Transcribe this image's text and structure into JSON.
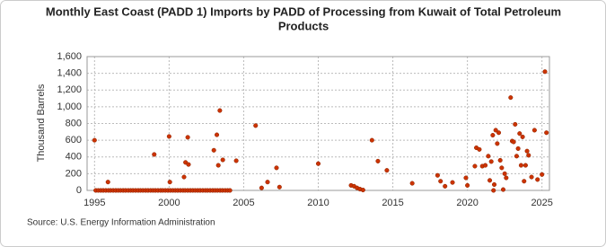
{
  "chart_data": {
    "type": "scatter",
    "title": [
      "Monthly East Coast (PADD 1) Imports by PADD of Processing from Kuwait of Total Petroleum",
      "Products"
    ],
    "y_label": "Thousand Barrels",
    "source": "Source: U.S. Energy Information Administration",
    "color": "#cc3300",
    "grid": true,
    "xlim": [
      1994.5,
      2025.5
    ],
    "xticks": [
      1995,
      2000,
      2005,
      2010,
      2015,
      2020,
      2025
    ],
    "ylim": [
      0,
      1600
    ],
    "yticks": [
      0,
      200,
      400,
      600,
      800,
      {
        "value": 1000,
        "label": "1,000"
      },
      {
        "value": 1200,
        "label": "1,200"
      },
      {
        "value": 1400,
        "label": "1,400"
      },
      {
        "value": 1600,
        "label": "1,600"
      }
    ],
    "x": [
      1995.08,
      1995.25,
      1995.42,
      1995.58,
      1995.75,
      1995.92,
      1996.08,
      1996.25,
      1996.42,
      1996.58,
      1996.75,
      1996.92,
      1997.08,
      1997.25,
      1997.42,
      1997.58,
      1997.75,
      1997.92,
      1998.08,
      1998.25,
      1998.42,
      1998.58,
      1998.75,
      1998.92,
      1999.08,
      1999.25,
      1999.42,
      1999.58,
      1999.75,
      1999.92,
      2000.08,
      2000.25,
      2000.42,
      2000.58,
      2000.75,
      2000.92,
      2001.08,
      2001.25,
      2001.42,
      2001.58,
      2001.75,
      2001.92,
      2002.08,
      2002.25,
      2002.42,
      2002.58,
      2002.75,
      2002.92,
      2003.08,
      2003.25,
      2003.42,
      2003.58,
      2003.75,
      2003.92,
      2004.08,
      1995.0,
      1995.9,
      1999.0,
      2000.0,
      2000.05,
      2001.0,
      2001.1,
      2001.25,
      2001.3,
      2003.0,
      2003.2,
      2003.3,
      2003.4,
      2003.6,
      2004.5,
      2005.8,
      2006.2,
      2006.6,
      2007.2,
      2007.4,
      2010.0,
      2012.2,
      2012.4,
      2012.6,
      2012.8,
      2013.0,
      2013.6,
      2014.0,
      2014.6,
      2016.3,
      2018.0,
      2018.2,
      2018.5,
      2019.0,
      2019.9,
      2020.0,
      2020.5,
      2020.6,
      2020.8,
      2021.0,
      2021.2,
      2021.4,
      2021.5,
      2021.6,
      2021.7,
      2021.75,
      2021.8,
      2021.9,
      2022.0,
      2022.1,
      2022.2,
      2022.3,
      2022.4,
      2022.5,
      2022.6,
      2022.9,
      2023.0,
      2023.1,
      2023.2,
      2023.3,
      2023.4,
      2023.5,
      2023.6,
      2023.7,
      2023.8,
      2023.9,
      2024.0,
      2024.1,
      2024.3,
      2024.5,
      2024.7,
      2025.0,
      2025.2,
      2025.3
    ],
    "values": [
      0,
      0,
      0,
      0,
      0,
      0,
      0,
      0,
      0,
      0,
      0,
      0,
      0,
      0,
      0,
      0,
      0,
      0,
      0,
      0,
      0,
      0,
      0,
      0,
      0,
      0,
      0,
      0,
      0,
      0,
      0,
      0,
      0,
      0,
      0,
      0,
      0,
      0,
      0,
      0,
      0,
      0,
      0,
      0,
      0,
      0,
      0,
      0,
      0,
      0,
      0,
      0,
      0,
      0,
      0,
      600,
      100,
      430,
      645,
      100,
      160,
      335,
      635,
      310,
      480,
      665,
      300,
      955,
      365,
      355,
      775,
      30,
      100,
      270,
      40,
      320,
      60,
      50,
      30,
      15,
      5,
      600,
      350,
      240,
      85,
      180,
      110,
      50,
      95,
      150,
      60,
      290,
      510,
      490,
      290,
      300,
      410,
      120,
      345,
      660,
      0,
      70,
      720,
      560,
      690,
      360,
      270,
      10,
      200,
      150,
      1110,
      590,
      580,
      790,
      410,
      500,
      680,
      300,
      640,
      110,
      300,
      470,
      420,
      160,
      720,
      130,
      190,
      1420,
      690
    ]
  }
}
